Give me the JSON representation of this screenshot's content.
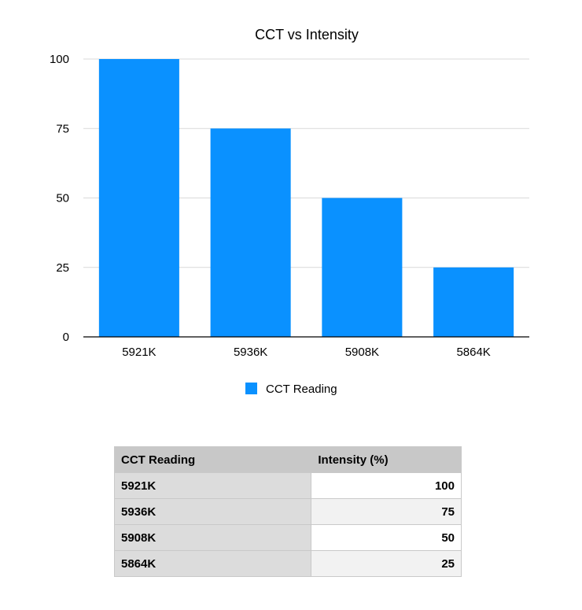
{
  "chart_data": {
    "type": "bar",
    "title": "CCT vs Intensity",
    "xlabel": "",
    "ylabel": "",
    "categories": [
      "5921K",
      "5936K",
      "5908K",
      "5864K"
    ],
    "series": [
      {
        "name": "CCT Reading",
        "values": [
          100,
          75,
          50,
          25
        ],
        "color": "#0a91ff"
      }
    ],
    "ylim": [
      0,
      100
    ],
    "yticks": [
      0,
      25,
      50,
      75,
      100
    ],
    "grid": true,
    "legend": "bottom-center"
  },
  "table": {
    "headers": [
      "CCT Reading",
      "Intensity (%)"
    ],
    "rows": [
      [
        "5921K",
        "100"
      ],
      [
        "5936K",
        "75"
      ],
      [
        "5908K",
        "50"
      ],
      [
        "5864K",
        "25"
      ]
    ]
  }
}
